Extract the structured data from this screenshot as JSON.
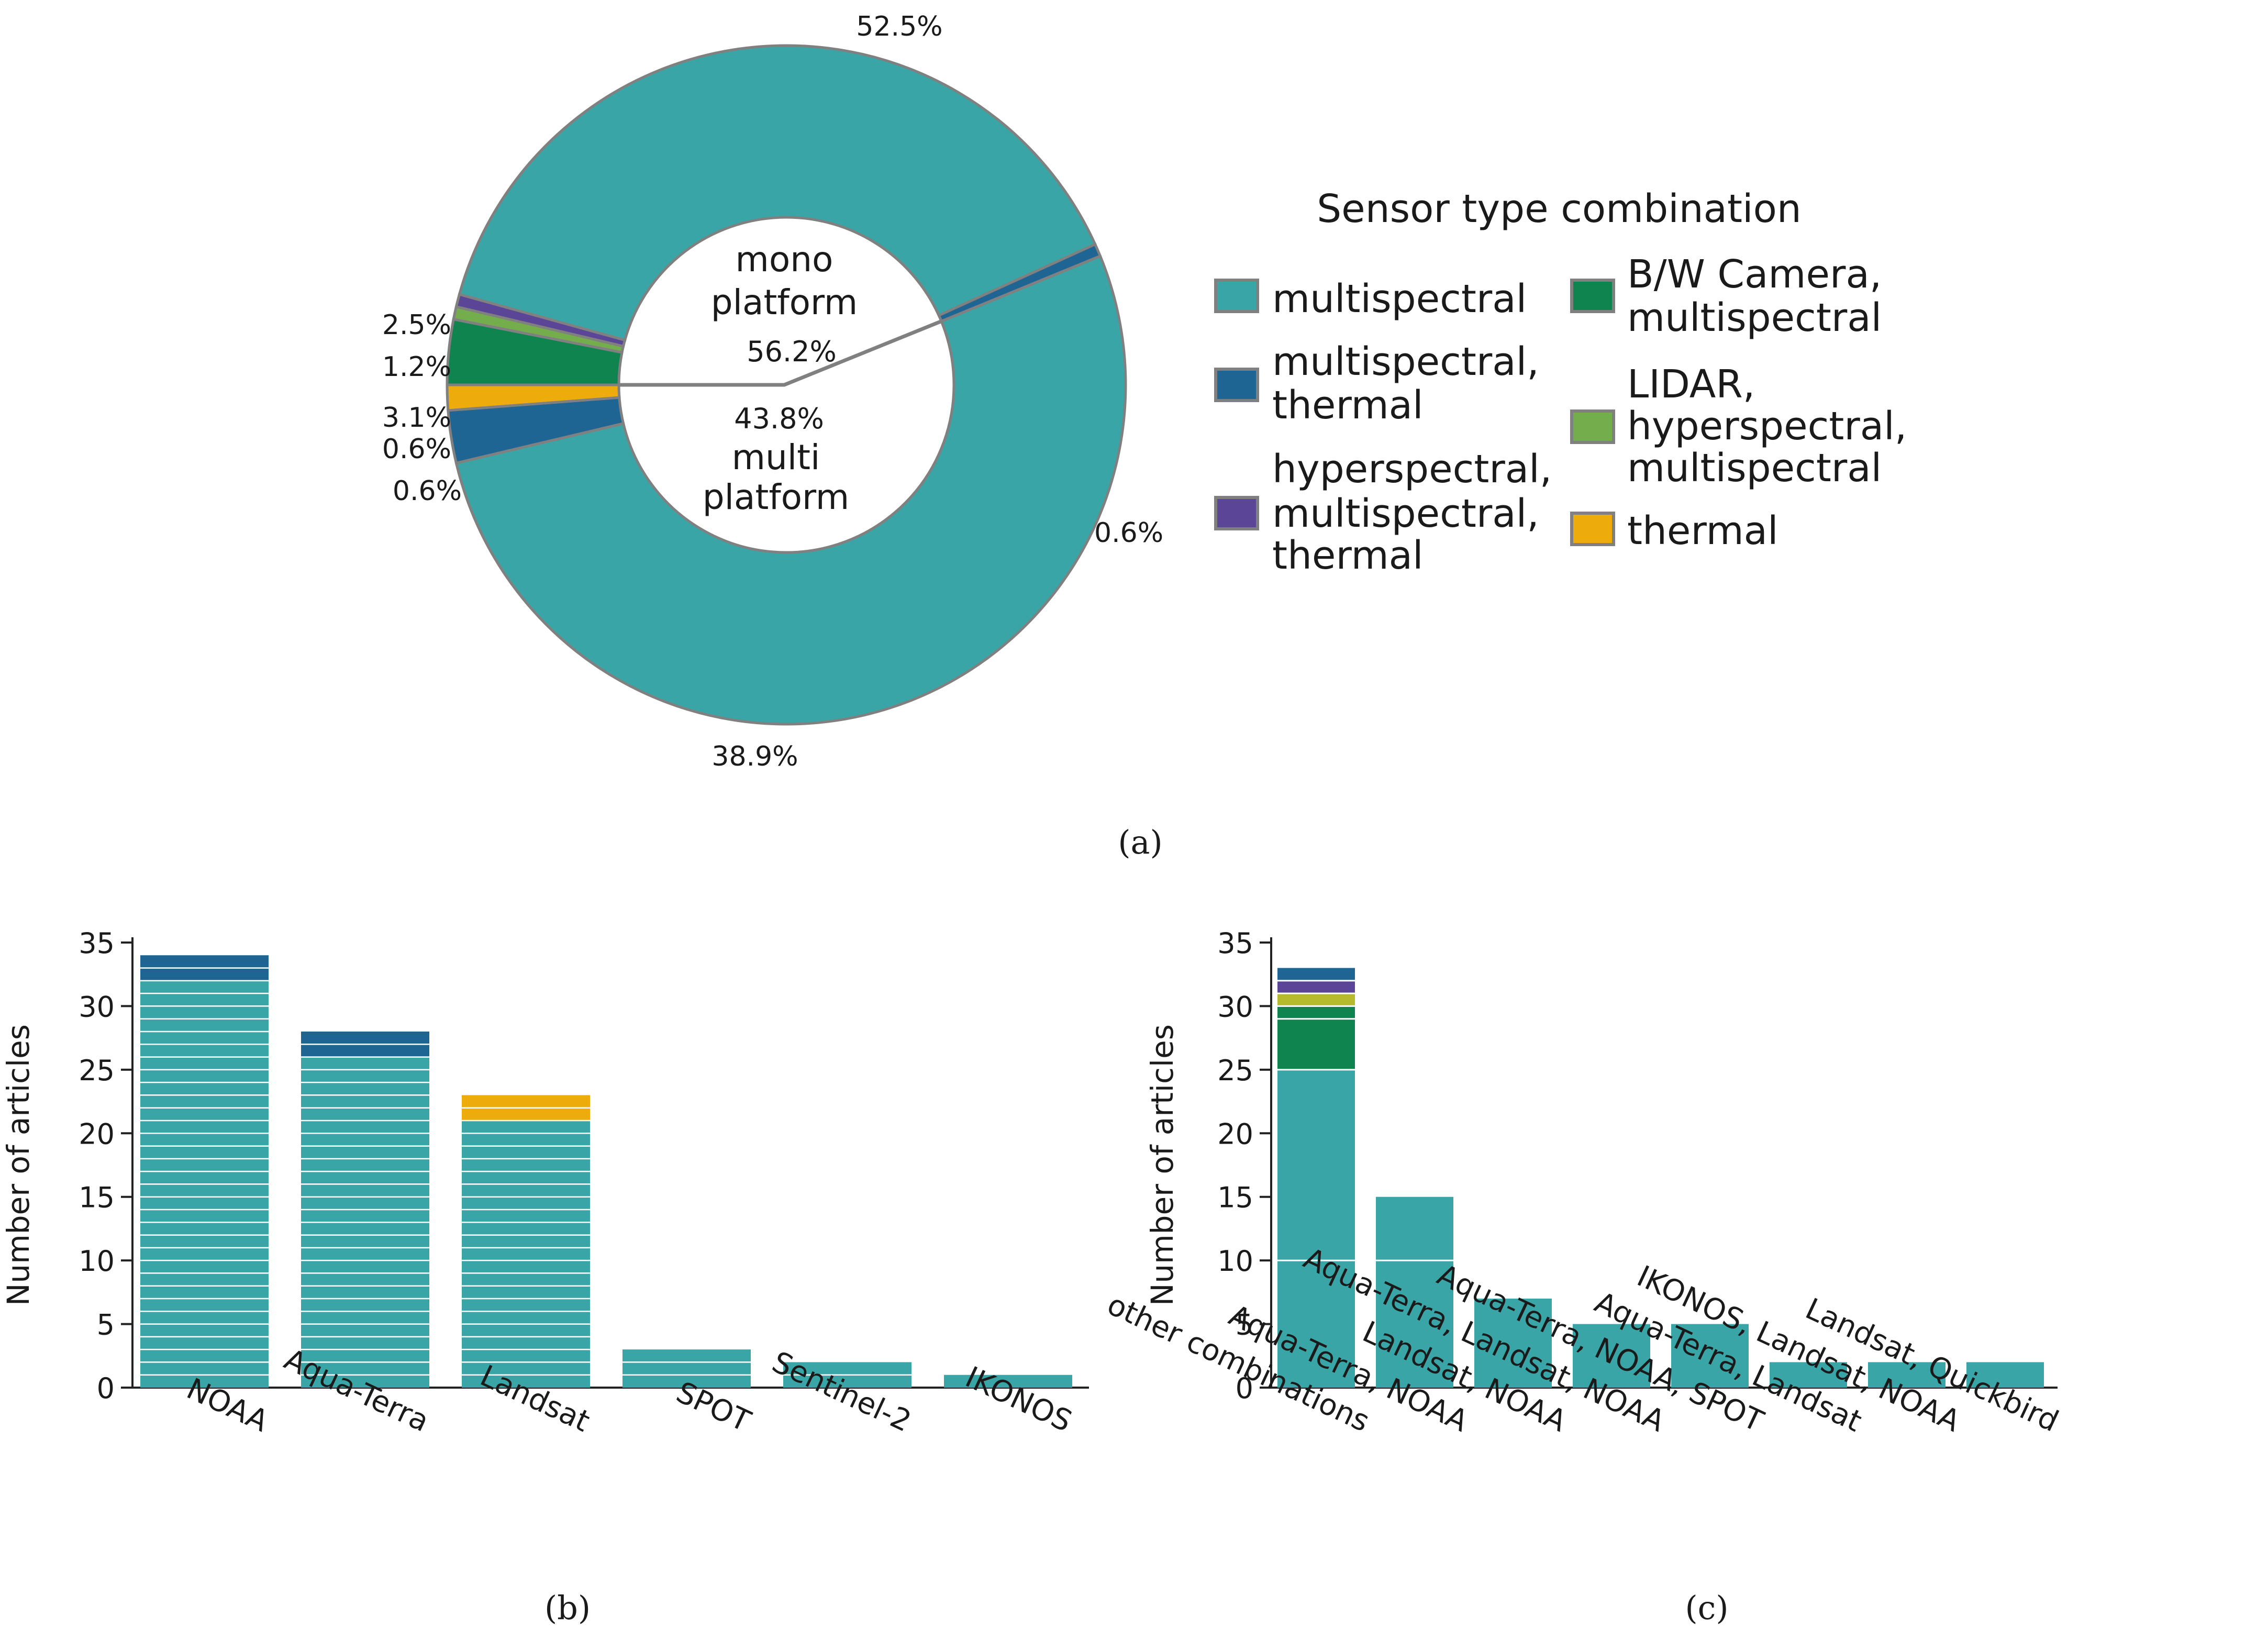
{
  "colors": {
    "multispectral": "#3aa5a6",
    "multispectral_thermal": "#1f6593",
    "hyperspectral_multispectral_thermal": "#5b4596",
    "bw_camera_multispectral": "#10844f",
    "lidar_hyperspectral_multispectral": "#74ad4c",
    "thermal": "#eeac0c",
    "olive": "#b5bb2c",
    "outline": "#808080"
  },
  "panel_labels": {
    "a": "(a)",
    "b": "(b)",
    "c": "(c)"
  },
  "chart_data": [
    {
      "type": "pie",
      "id": "a",
      "inner_labels": {
        "mono_line1": "mono",
        "mono_line2": "platform",
        "mono_pct": "56.2%",
        "multi_pct": "43.8%",
        "multi_line1": "multi",
        "multi_line2": "platform"
      },
      "inner_split": [
        56.2,
        43.8
      ],
      "slices": [
        {
          "group": "mono",
          "category": "multispectral",
          "value": 52.5,
          "label": "52.5%"
        },
        {
          "group": "mono",
          "category": "multispectral_thermal",
          "value": 2.5,
          "label": "2.5%"
        },
        {
          "group": "mono",
          "category": "thermal",
          "value": 1.2,
          "label": "1.2%"
        },
        {
          "group": "multi",
          "category": "bw_camera_multispectral",
          "value": 3.1,
          "label": "3.1%"
        },
        {
          "group": "multi",
          "category": "lidar_hyperspectral_multispectral",
          "value": 0.6,
          "label": "0.6%"
        },
        {
          "group": "multi",
          "category": "hyperspectral_multispectral_thermal",
          "value": 0.6,
          "label": "0.6%"
        },
        {
          "group": "multi",
          "category": "multispectral",
          "value": 38.9,
          "label": "38.9%"
        },
        {
          "group": "multi",
          "category": "multispectral_thermal",
          "value": 0.6,
          "label": "0.6%"
        }
      ],
      "legend": {
        "title": "Sensor type combination",
        "placement": "right",
        "entries": [
          {
            "category": "multispectral",
            "lines": [
              "multispectral"
            ]
          },
          {
            "category": "multispectral_thermal",
            "lines": [
              "multispectral,",
              "thermal"
            ]
          },
          {
            "category": "hyperspectral_multispectral_thermal",
            "lines": [
              "hyperspectral,",
              "multispectral,",
              "thermal"
            ]
          },
          {
            "category": "bw_camera_multispectral",
            "lines": [
              "B/W Camera,",
              "multispectral"
            ]
          },
          {
            "category": "lidar_hyperspectral_multispectral",
            "lines": [
              "LIDAR,",
              "hyperspectral,",
              "multispectral"
            ]
          },
          {
            "category": "thermal",
            "lines": [
              "thermal"
            ]
          }
        ]
      }
    },
    {
      "type": "bar",
      "id": "b",
      "stacked": true,
      "ylabel": "Number of articles",
      "ylim": [
        0,
        35
      ],
      "yticks": [
        0,
        5,
        10,
        15,
        20,
        25,
        30,
        35
      ],
      "categories": [
        "NOAA",
        "Aqua-Terra",
        "Landsat",
        "SPOT",
        "Sentinel-2",
        "IKONOS"
      ],
      "series": [
        {
          "category": "multispectral",
          "values": [
            32,
            26,
            21,
            3,
            2,
            1
          ]
        },
        {
          "category": "multispectral_thermal",
          "values": [
            2,
            2,
            0,
            0,
            0,
            0
          ]
        },
        {
          "category": "thermal",
          "values": [
            0,
            0,
            2,
            0,
            0,
            0
          ]
        }
      ]
    },
    {
      "type": "bar",
      "id": "c",
      "stacked": true,
      "ylabel": "Number of articles",
      "ylim": [
        0,
        35
      ],
      "yticks": [
        0,
        5,
        10,
        15,
        20,
        25,
        30,
        35
      ],
      "categories": [
        "other combinations",
        "Aqua-Terra, NOAA",
        "Landsat, NOAA",
        "Aqua-Terra, Landsat, NOAA",
        "Aqua-Terra, NOAA, SPOT",
        "Aqua-Terra, Landsat",
        "IKONOS, Landsat, NOAA",
        "Landsat, Quickbird"
      ],
      "series": [
        {
          "category": "multispectral",
          "values": [
            25,
            15,
            7,
            5,
            5,
            2,
            2,
            2
          ]
        },
        {
          "category": "bw_camera_multispectral",
          "values": [
            5,
            0,
            0,
            0,
            0,
            0,
            0,
            0
          ]
        },
        {
          "category": "olive",
          "values": [
            1,
            0,
            0,
            0,
            0,
            0,
            0,
            0
          ]
        },
        {
          "category": "hyperspectral_multispectral_thermal",
          "values": [
            1,
            0,
            0,
            0,
            0,
            0,
            0,
            0
          ]
        },
        {
          "category": "multispectral_thermal",
          "values": [
            1,
            0,
            0,
            0,
            0,
            0,
            0,
            0
          ]
        }
      ]
    }
  ]
}
